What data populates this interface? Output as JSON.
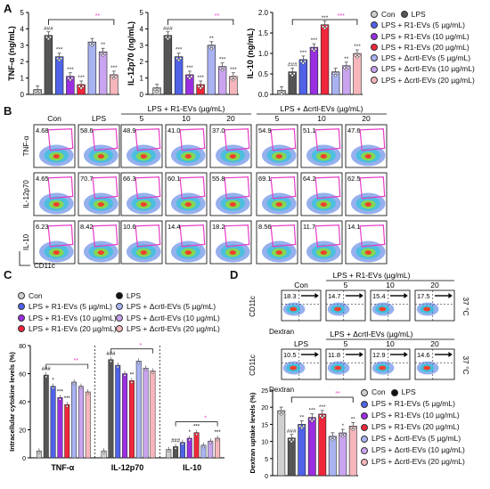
{
  "colors": {
    "con": "#d0d0d0",
    "lps": "#555555",
    "r1_5": "#4f62e8",
    "r1_10": "#9a2ee0",
    "r1_20": "#f0263a",
    "d_5": "#a9b3f2",
    "d_10": "#caa4f0",
    "d_20": "#f7b6bc",
    "magenta": "#e83cc8"
  },
  "panel_letters": {
    "a": "A",
    "b": "B",
    "c": "C",
    "d": "D"
  },
  "legend_a": {
    "con": "Con",
    "lps": "LPS",
    "items": [
      "LPS + R1-EVs (5 µg/mL)",
      "LPS + R1-EVs (10 µg/mL)",
      "LPS + R1-EVs (20 µg/mL)",
      "LPS + Δcrtl-EVs (5 µg/mL)",
      "LPS + Δcrtl-EVs (10 µg/mL)",
      "LPS + Δcrtl-EVs (20 µg/mL)"
    ]
  },
  "legend_c": {
    "left": [
      "Con",
      "LPS + R1-EVs (5 µg/mL)",
      "LPS + R1-EVs (10 µg/mL)",
      "LPS + R1-EVs (20 µg/mL)"
    ],
    "right": [
      "LPS",
      "LPS + Δcrtl-EVs (5 µg/mL)",
      "LPS + Δcrtl-EVs (10 µg/mL)",
      "LPS + Δcrtl-EVs (20 µg/mL)"
    ]
  },
  "chart_data": [
    {
      "type": "bar",
      "ylabel": "TNF-α (ng/mL)",
      "ylim": [
        0,
        5
      ],
      "yticks": [
        0,
        1,
        2,
        3,
        4,
        5
      ],
      "values": [
        0.3,
        3.6,
        2.3,
        1.1,
        0.6,
        3.2,
        2.6,
        1.2
      ],
      "sig": [
        "",
        "###",
        "***",
        "***",
        "***",
        "",
        "**",
        "***"
      ],
      "bracket": "**"
    },
    {
      "type": "bar",
      "ylabel": "IL-12p70 (ng/mL)",
      "ylim": [
        0,
        5
      ],
      "yticks": [
        0,
        1,
        2,
        3,
        4,
        5
      ],
      "values": [
        0.4,
        3.6,
        2.3,
        1.2,
        0.6,
        3.0,
        1.7,
        1.1
      ],
      "sig": [
        "",
        "###",
        "***",
        "***",
        "***",
        "**",
        "***",
        "***"
      ],
      "bracket": "**"
    },
    {
      "type": "bar",
      "ylabel": "IL-10 (ng/mL)",
      "ylim": [
        0,
        2.0
      ],
      "yticks": [
        0.0,
        0.5,
        1.0,
        1.5,
        2.0
      ],
      "values": [
        0.1,
        0.55,
        0.85,
        1.15,
        1.7,
        0.55,
        0.7,
        1.0
      ],
      "sig": [
        "",
        "###",
        "***",
        "***",
        "***",
        "",
        "**",
        "***"
      ],
      "bracket": "***"
    },
    {
      "type": "bar",
      "ylabel": "Intracellular cytokine levels (%)",
      "ylim": [
        0,
        80
      ],
      "yticks": [
        0,
        20,
        40,
        60,
        80
      ],
      "categories": [
        "TNF-α",
        "IL-12p70",
        "IL-10"
      ],
      "groups": [
        {
          "values": [
            5,
            59,
            51,
            43,
            38,
            54,
            51,
            47
          ],
          "sig": [
            "",
            "###",
            "*",
            "***",
            "***",
            "",
            "",
            ""
          ],
          "bracket": "**"
        },
        {
          "values": [
            5,
            70,
            66,
            60,
            55,
            69,
            64,
            62
          ],
          "sig": [
            "",
            "###",
            "",
            "",
            "**",
            "",
            "",
            ""
          ],
          "bracket": "*"
        },
        {
          "values": [
            6,
            8,
            11,
            14,
            18,
            9,
            12,
            14
          ],
          "sig": [
            "",
            "###",
            "",
            "*",
            "***",
            "",
            "",
            "***"
          ],
          "bracket": "*"
        }
      ]
    },
    {
      "type": "bar",
      "ylabel": "Dextran uptake levels (%)",
      "ylim": [
        0,
        25
      ],
      "yticks": [
        0,
        5,
        10,
        15,
        20,
        25
      ],
      "values": [
        19,
        11,
        15,
        17,
        18,
        11.5,
        12.5,
        14.5
      ],
      "sig": [
        "",
        "###",
        "**",
        "***",
        "***",
        "",
        "*",
        "**"
      ],
      "bracket": "**"
    }
  ],
  "flow_b": {
    "headers": [
      "Con",
      "LPS",
      "5",
      "10",
      "20",
      "5",
      "10",
      "20"
    ],
    "group_r1": "LPS + R1-EVs (µg/mL)",
    "group_d": "LPS + Δcrtl-EVs (µg/mL)",
    "rows": [
      {
        "label": "TNF-α",
        "values": [
          "4.68",
          "58.6",
          "48.9",
          "41.0",
          "37.0",
          "54.9",
          "51.1",
          "47.6"
        ]
      },
      {
        "label": "IL-12p70",
        "values": [
          "4.65",
          "70.7",
          "66.3",
          "60.1",
          "55.8",
          "69.1",
          "64.2",
          "62.5"
        ]
      },
      {
        "label": "IL-10",
        "values": [
          "6.23",
          "8.42",
          "10.6",
          "14.4",
          "18.2",
          "8.56",
          "11.7",
          "14.1"
        ]
      }
    ],
    "xaxis": "CD11c"
  },
  "flow_d": {
    "title_r1": "LPS + R1-EVs (µg/mL)",
    "title_d": "LPS + Δcrtl-EVs (µg/mL)",
    "headers_r1": [
      "Con",
      "5",
      "10",
      "20"
    ],
    "headers_d": [
      "LPS",
      "5",
      "10",
      "20"
    ],
    "values_r1": [
      "18.3",
      "14.7",
      "15.4",
      "17.5"
    ],
    "values_d": [
      "10.5",
      "11.8",
      "12.9",
      "14.6"
    ],
    "ylabel": "CD11c",
    "xlabel": "Dextran",
    "temp": "37 °C"
  },
  "legend_d": {
    "con": "Con",
    "lps": "LPS",
    "items": [
      "LPS + R1-EVs (5 µg/mL)",
      "LPS + R1-EVs (10 µg/mL)",
      "LPS + R1-EVs (20 µg/mL)",
      "LPS + Δcrtl-EVs (5 µg/mL)",
      "LPS + Δcrtl-EVs (10 µg/mL)",
      "LPS + Δcrtl-EVs (20 µg/mL)"
    ]
  }
}
